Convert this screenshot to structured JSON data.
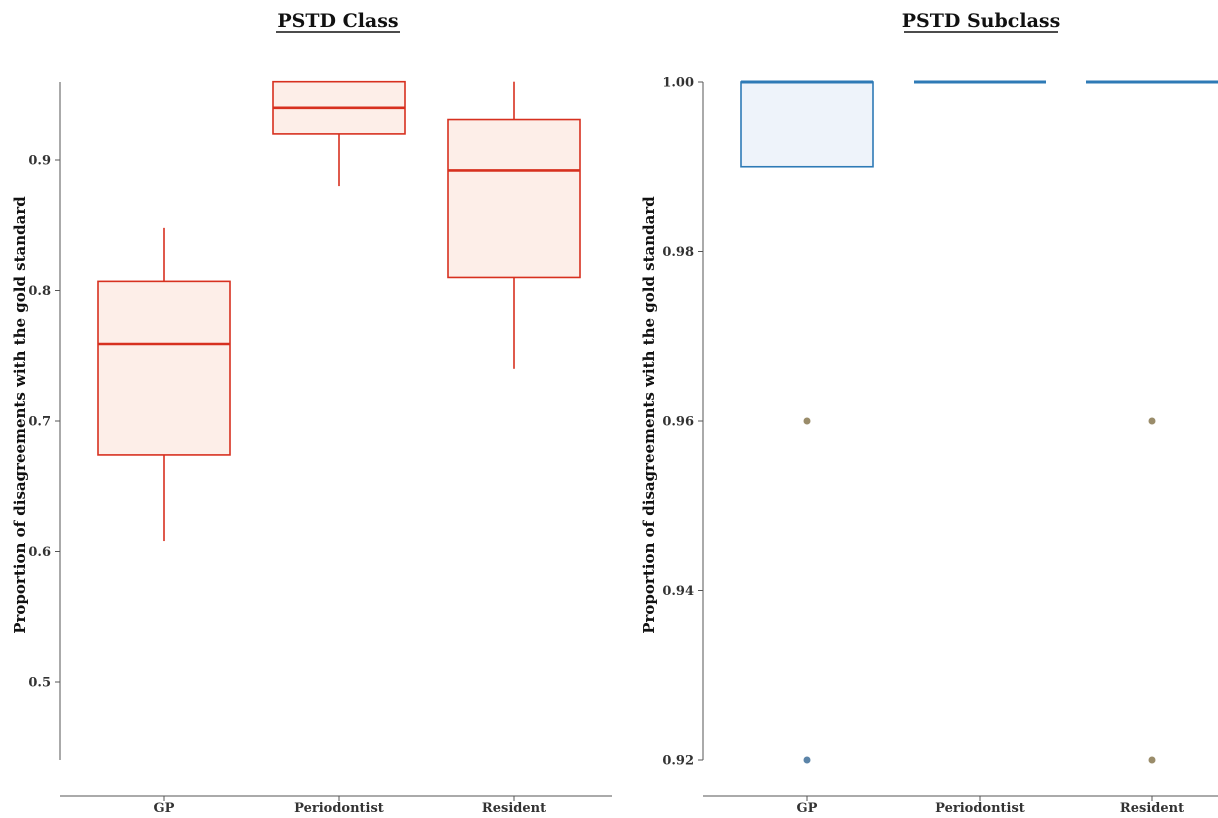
{
  "chart_data": [
    {
      "type": "box",
      "title": "PSTD Class",
      "xlabel": "",
      "ylabel": "Proportion of disagreements with the gold standard",
      "ylim": [
        0.44,
        0.96
      ],
      "yticks": [
        0.5,
        0.6,
        0.7,
        0.8,
        0.9
      ],
      "ytick_labels": [
        "0.5",
        "0.6",
        "0.7",
        "0.8",
        "0.9"
      ],
      "grid": false,
      "categories": [
        "GP",
        "Periodontist",
        "Resident"
      ],
      "boxes": [
        {
          "category": "GP",
          "min": 0.608,
          "q1": 0.674,
          "median": 0.759,
          "q3": 0.807,
          "max": 0.848,
          "outliers": []
        },
        {
          "category": "Periodontist",
          "min": 0.88,
          "q1": 0.92,
          "median": 0.94,
          "q3": 0.96,
          "max": 0.96,
          "outliers": []
        },
        {
          "category": "Resident",
          "min": 0.74,
          "q1": 0.81,
          "median": 0.892,
          "q3": 0.931,
          "max": 0.96,
          "outliers": []
        }
      ],
      "colors": {
        "stroke": "#d7301f",
        "fill": "#fdeee8"
      }
    },
    {
      "type": "box",
      "title": "PSTD Subclass",
      "xlabel": "",
      "ylabel": "Proportion of disagreements with the gold standard",
      "ylim": [
        0.92,
        1.0
      ],
      "yticks": [
        0.92,
        0.94,
        0.96,
        0.98,
        1.0
      ],
      "ytick_labels": [
        "0.92",
        "0.94",
        "0.96",
        "0.98",
        "1.00"
      ],
      "grid": false,
      "categories": [
        "GP",
        "Periodontist",
        "Resident"
      ],
      "boxes": [
        {
          "category": "GP",
          "min": 0.99,
          "q1": 0.99,
          "median": 1.0,
          "q3": 1.0,
          "max": 1.0,
          "outliers": [
            0.96,
            0.92
          ]
        },
        {
          "category": "Periodontist",
          "min": 1.0,
          "q1": 1.0,
          "median": 1.0,
          "q3": 1.0,
          "max": 1.0,
          "outliers": []
        },
        {
          "category": "Resident",
          "min": 1.0,
          "q1": 1.0,
          "median": 1.0,
          "q3": 1.0,
          "max": 1.0,
          "outliers": [
            0.96,
            0.92
          ]
        }
      ],
      "colors": {
        "stroke": "#2e7ab6",
        "fill": "#eef3fa",
        "outlier_gp_low": "#5b84a8",
        "outlier_other": "#9a8c6a"
      }
    }
  ]
}
